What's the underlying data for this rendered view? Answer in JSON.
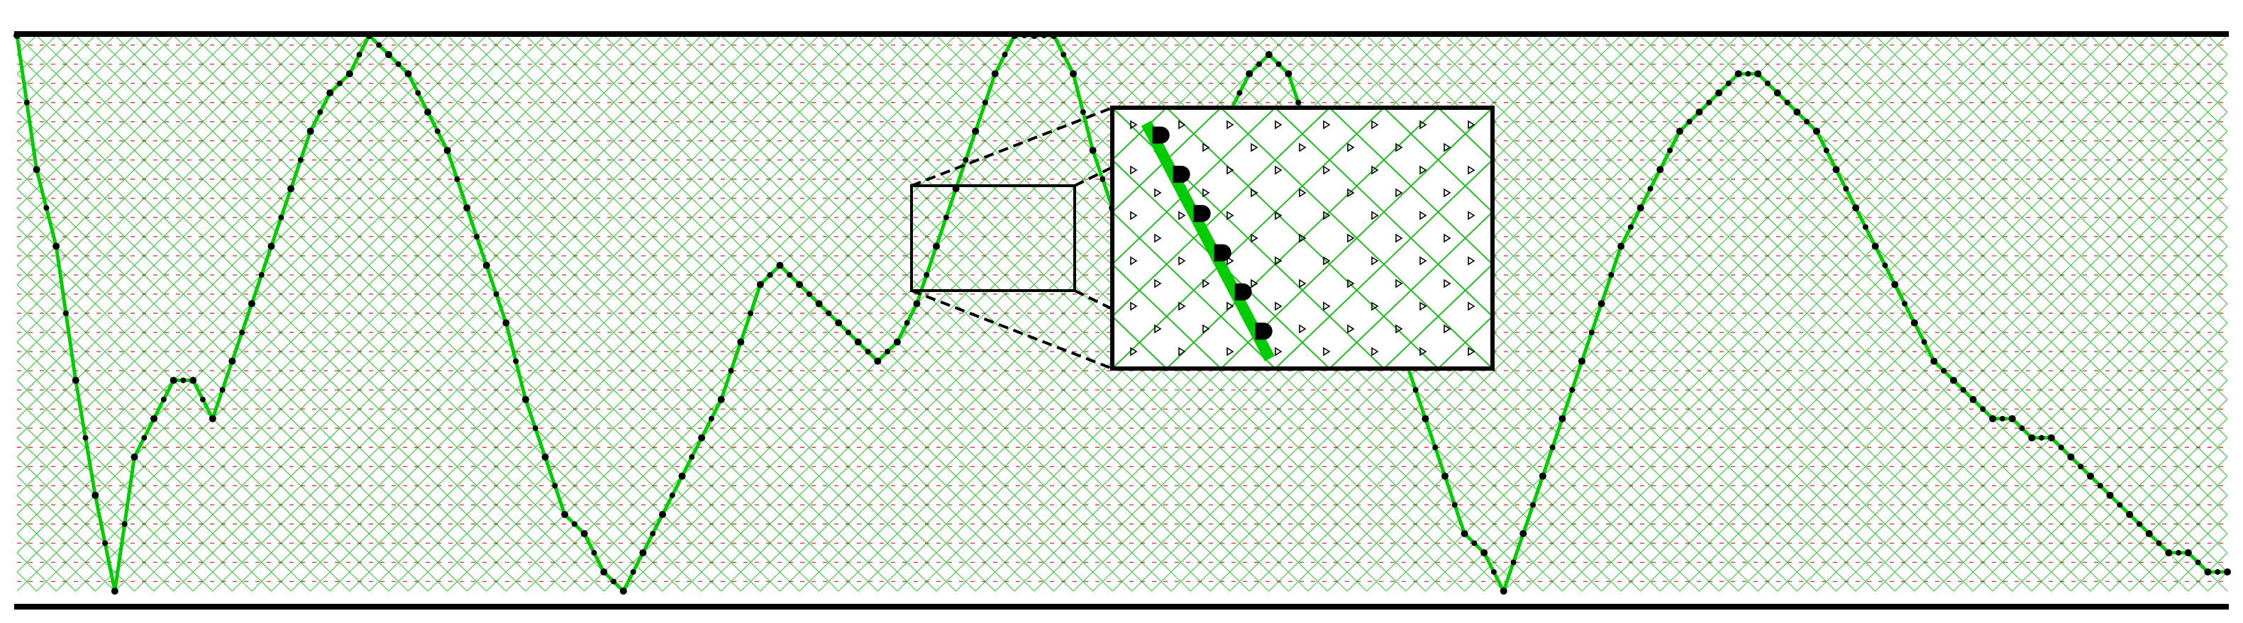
{
  "diagram": {
    "colors": {
      "background": "#ffffff",
      "lattice": "#22bb22",
      "path": "#00cc00",
      "dashes": "#cc0000",
      "dots": "#000000",
      "border": "#000000"
    },
    "lattice": {
      "columns": 113,
      "rows": 29
    },
    "path_heights": [
      29,
      22,
      18,
      11,
      5,
      0,
      7,
      9,
      11,
      11,
      9,
      12,
      15,
      18,
      21,
      24,
      26,
      27,
      29,
      28,
      27,
      25,
      23,
      20,
      17,
      14,
      10,
      7,
      4,
      3,
      1,
      0,
      2,
      4,
      6,
      8,
      10,
      13,
      16,
      17,
      16,
      15,
      14,
      13,
      12,
      13,
      15,
      18,
      21,
      24,
      27,
      29,
      29,
      29,
      27,
      23,
      20,
      18,
      17,
      18,
      20,
      22,
      25,
      27,
      28,
      27,
      24,
      21,
      19,
      18,
      15,
      12,
      9,
      6,
      3,
      2,
      0,
      3,
      6,
      9,
      12,
      15,
      18,
      20,
      22,
      24,
      25,
      26,
      27,
      27,
      26,
      25,
      24,
      22,
      20,
      18,
      16,
      14,
      12,
      11,
      10,
      9,
      9,
      8,
      8,
      7,
      6,
      5,
      4,
      3,
      2,
      2,
      1,
      1
    ],
    "inset_lattice": {
      "columns": 7,
      "rows": 5
    },
    "inset_path_steps": 6
  }
}
